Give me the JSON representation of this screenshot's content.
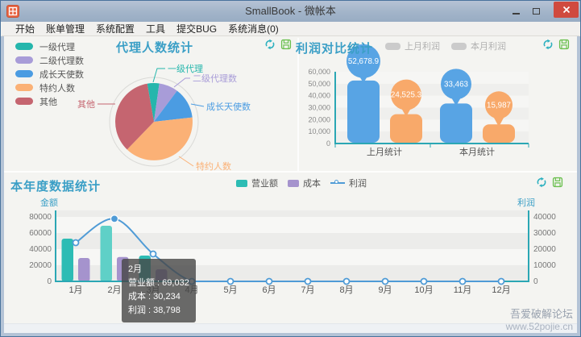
{
  "window": {
    "title": "SmallBook - 微帐本"
  },
  "menu": {
    "items": [
      "开始",
      "账单管理",
      "系统配置",
      "工具",
      "提交BUG",
      "系统消息(0)"
    ]
  },
  "watermark": {
    "line1": "吾爱破解论坛",
    "line2": "www.52pojie.cn"
  },
  "ui_colors": {
    "axis": "#2ba7b4",
    "panel_title": "#3b9fc6",
    "tick_text": "#777"
  },
  "chart_data": [
    {
      "type": "pie",
      "title": "代理人数统计",
      "labels": [
        "一级代理",
        "二级代理数",
        "成长天使数",
        "特约人数",
        "其他"
      ],
      "values": [
        5,
        8,
        13,
        39,
        35
      ],
      "colors": [
        "#25b6ac",
        "#a89cd8",
        "#4b9ce2",
        "#fbb176",
        "#c56570"
      ],
      "legend_position": "left"
    },
    {
      "type": "bar",
      "title": "利润对比统计",
      "legend": [
        "上月利润",
        "本月利润"
      ],
      "legend_swatch_color": "#cbcbcb",
      "categories": [
        "上月统计",
        "本月统计"
      ],
      "series": [
        {
          "name": "bar-blue",
          "color": "#58a4e4",
          "values": [
            52678.9,
            33463
          ]
        },
        {
          "name": "bar-orange",
          "color": "#f8a96a",
          "values": [
            24525.3,
            15987
          ]
        }
      ],
      "value_labels": [
        [
          "52,678.9",
          "33,463"
        ],
        [
          "24,525.3",
          "15,987"
        ]
      ],
      "ylim": [
        0,
        60000
      ],
      "yticks": [
        "0",
        "10,000",
        "20,000",
        "30,000",
        "40,000",
        "50,000",
        "60,000"
      ]
    },
    {
      "type": "bar+line",
      "title": "本年度数据统计",
      "legend": [
        {
          "label": "营业额",
          "color": "#2dbcb4",
          "style": "bar"
        },
        {
          "label": "成本",
          "color": "#a593cd",
          "style": "bar"
        },
        {
          "label": "利润",
          "color": "#4f9bd6",
          "style": "line"
        }
      ],
      "categories": [
        "1月",
        "2月",
        "3月",
        "4月",
        "5月",
        "6月",
        "7月",
        "8月",
        "9月",
        "10月",
        "11月",
        "12月"
      ],
      "series": [
        {
          "name": "营业额",
          "color": "#2dbcb4",
          "values": [
            53000,
            69032,
            32000,
            0,
            0,
            0,
            0,
            0,
            0,
            0,
            0,
            0
          ]
        },
        {
          "name": "成本",
          "color": "#a593cd",
          "values": [
            29000,
            30234,
            15000,
            0,
            0,
            0,
            0,
            0,
            0,
            0,
            0,
            0
          ]
        }
      ],
      "line": {
        "name": "利润",
        "color": "#4f9bd6",
        "values": [
          24000,
          38798,
          17000,
          0,
          0,
          0,
          0,
          0,
          0,
          0,
          0,
          0
        ]
      },
      "highlighted_index": 1,
      "highlight_color": "#5fd0c7",
      "left_axis": {
        "label": "金额",
        "ticks": [
          0,
          20000,
          40000,
          60000,
          80000
        ],
        "max": 80000
      },
      "right_axis": {
        "label": "利润",
        "ticks": [
          0,
          10000,
          20000,
          30000,
          40000
        ],
        "max": 40000
      },
      "tooltip": {
        "title": "2月",
        "lines": [
          "营业额 : 69,032",
          "成本 : 30,234",
          "利润 : 38,798"
        ]
      }
    }
  ]
}
